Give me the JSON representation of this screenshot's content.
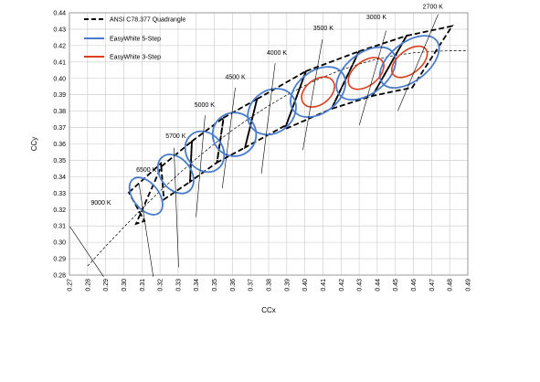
{
  "chart_data": {
    "type": "scatter",
    "xlabel": "CCx",
    "ylabel": "CCy",
    "xlim": [
      0.27,
      0.49
    ],
    "ylim": [
      0.28,
      0.44
    ],
    "x_ticks": [
      "0.27",
      "0.28",
      "0.29",
      "0.30",
      "0.31",
      "0.32",
      "0.33",
      "0.34",
      "0.35",
      "0.36",
      "0.37",
      "0.38",
      "0.39",
      "0.40",
      "0.41",
      "0.42",
      "0.43",
      "0.44",
      "0.45",
      "0.46",
      "0.47",
      "0.48",
      "0.49"
    ],
    "y_ticks": [
      "0.28",
      "0.29",
      "0.30",
      "0.31",
      "0.32",
      "0.33",
      "0.34",
      "0.35",
      "0.36",
      "0.37",
      "0.38",
      "0.39",
      "0.40",
      "0.41",
      "0.42",
      "0.43",
      "0.44"
    ],
    "grid": true,
    "legend_position": "top-left",
    "legend": [
      {
        "label": "ANSI C78.377 Quadrangle",
        "style": "dashed",
        "color": "#000000"
      },
      {
        "label": "EasyWhite 5-Step",
        "style": "solid",
        "color": "#4a7cc9"
      },
      {
        "label": "EasyWhite 3-Step",
        "style": "solid",
        "color": "#d9401f"
      }
    ],
    "colors": {
      "quadrangle": "#000000",
      "five_step": "#4a7cc9",
      "three_step": "#d9401f",
      "grid": "#c8c8c8",
      "locus": "#000000"
    },
    "cct_points": [
      {
        "label": "9000 K",
        "label_pos": [
          0.2874,
          0.3228
        ],
        "leader_end": [
          0.2703,
          0.3095
        ],
        "leader_to": [
          0.2889,
          0.279
        ]
      },
      {
        "label": "6500 K",
        "label_pos": [
          0.3125,
          0.3431
        ],
        "leader_end": [
          0.3084,
          0.3358
        ],
        "leader_to": [
          0.3163,
          0.279
        ]
      },
      {
        "label": "5700 K",
        "label_pos": [
          0.3287,
          0.3635
        ],
        "leader_end": [
          0.3277,
          0.3576
        ],
        "leader_to": [
          0.3303,
          0.2847
        ]
      },
      {
        "label": "5000 K",
        "label_pos": [
          0.3446,
          0.3825
        ],
        "leader_end": [
          0.3449,
          0.3774
        ],
        "leader_to": [
          0.3399,
          0.3155
        ]
      },
      {
        "label": "4500 K",
        "label_pos": [
          0.3616,
          0.3996
        ],
        "leader_end": [
          0.3616,
          0.3944
        ],
        "leader_to": [
          0.3544,
          0.333
        ]
      },
      {
        "label": "4000 K",
        "label_pos": [
          0.3845,
          0.4144
        ],
        "leader_end": [
          0.3836,
          0.4092
        ],
        "leader_to": [
          0.376,
          0.3419
        ]
      },
      {
        "label": "3500 K",
        "label_pos": [
          0.4102,
          0.4293
        ],
        "leader_end": [
          0.4097,
          0.4237
        ],
        "leader_to": [
          0.3989,
          0.3564
        ]
      },
      {
        "label": "3000 K",
        "label_pos": [
          0.4395,
          0.4361
        ],
        "leader_end": [
          0.4449,
          0.4291
        ],
        "leader_to": [
          0.4301,
          0.3715
        ]
      },
      {
        "label": "2700 K",
        "label_pos": [
          0.4707,
          0.4425
        ],
        "leader_end": [
          0.4736,
          0.439
        ],
        "leader_to": [
          0.4514,
          0.3802
        ]
      }
    ],
    "ansi_quadrangles": [
      {
        "cct": "6500 K",
        "points": [
          [
            0.3028,
            0.3304
          ],
          [
            0.3205,
            0.3481
          ],
          [
            0.3207,
            0.3462
          ],
          [
            0.3068,
            0.3113
          ],
          [
            0.3115,
            0.313
          ]
        ]
      },
      {
        "cct": "5700 K",
        "points": [
          [
            0.3207,
            0.3462
          ],
          [
            0.3376,
            0.3616
          ],
          [
            0.3366,
            0.3369
          ],
          [
            0.3221,
            0.3261
          ]
        ]
      },
      {
        "cct": "5000 K",
        "points": [
          [
            0.3376,
            0.3616
          ],
          [
            0.3551,
            0.376
          ],
          [
            0.3515,
            0.3487
          ],
          [
            0.3366,
            0.3369
          ]
        ]
      },
      {
        "cct": "4500 K",
        "points": [
          [
            0.3551,
            0.376
          ],
          [
            0.3736,
            0.3874
          ],
          [
            0.367,
            0.3578
          ],
          [
            0.3515,
            0.3487
          ]
        ]
      },
      {
        "cct": "4000 K",
        "points": [
          [
            0.3736,
            0.3874
          ],
          [
            0.4006,
            0.4044
          ],
          [
            0.3898,
            0.3716
          ],
          [
            0.367,
            0.3578
          ]
        ]
      },
      {
        "cct": "3500 K",
        "points": [
          [
            0.4006,
            0.4044
          ],
          [
            0.4299,
            0.4165
          ],
          [
            0.4147,
            0.3814
          ],
          [
            0.3889,
            0.369
          ]
        ]
      },
      {
        "cct": "3000 K",
        "points": [
          [
            0.4299,
            0.4165
          ],
          [
            0.4562,
            0.426
          ],
          [
            0.4373,
            0.3893
          ],
          [
            0.4147,
            0.3814
          ]
        ]
      },
      {
        "cct": "2700 K",
        "points": [
          [
            0.4562,
            0.426
          ],
          [
            0.4813,
            0.4319
          ],
          [
            0.4593,
            0.3944
          ],
          [
            0.4373,
            0.3893
          ]
        ]
      }
    ],
    "five_step_ellipses": [
      {
        "cct": "6500 K",
        "center": [
          0.3123,
          0.3282
        ],
        "rx": 0.0071,
        "ry": 0.013
      },
      {
        "cct": "5700 K",
        "center": [
          0.3287,
          0.3417
        ],
        "rx": 0.0084,
        "ry": 0.0132
      },
      {
        "cct": "5000 K",
        "center": [
          0.3447,
          0.3553
        ],
        "rx": 0.01,
        "ry": 0.0132
      },
      {
        "cct": "4500 K",
        "center": [
          0.3611,
          0.3658
        ],
        "rx": 0.012,
        "ry": 0.0133
      },
      {
        "cct": "4000 K",
        "center": [
          0.3818,
          0.3797
        ],
        "rx": 0.0142,
        "ry": 0.0129
      },
      {
        "cct": "3500 K",
        "center": [
          0.4073,
          0.3917
        ],
        "rx": 0.017,
        "ry": 0.0127
      },
      {
        "cct": "3000 K",
        "center": [
          0.4338,
          0.403
        ],
        "rx": 0.0188,
        "ry": 0.0123
      },
      {
        "cct": "2700 K",
        "center": [
          0.4578,
          0.4101
        ],
        "rx": 0.019,
        "ry": 0.0117
      }
    ],
    "three_step_ellipses": [
      {
        "cct": "3500 K",
        "center": [
          0.4073,
          0.3917
        ],
        "rx": 0.0102,
        "ry": 0.0076
      },
      {
        "cct": "3000 K",
        "center": [
          0.4338,
          0.403
        ],
        "rx": 0.0113,
        "ry": 0.0074
      },
      {
        "cct": "2700 K",
        "center": [
          0.4578,
          0.4101
        ],
        "rx": 0.0114,
        "ry": 0.007
      }
    ],
    "planckian_locus": {
      "x": [
        0.28,
        0.29,
        0.3,
        0.31,
        0.32,
        0.33,
        0.34,
        0.35,
        0.36,
        0.37,
        0.38,
        0.39,
        0.4,
        0.41,
        0.42,
        0.43,
        0.44,
        0.45,
        0.46,
        0.47,
        0.48,
        0.49
      ],
      "y": [
        0.2855,
        0.2975,
        0.3092,
        0.3205,
        0.3312,
        0.3414,
        0.351,
        0.36,
        0.3684,
        0.3761,
        0.3833,
        0.3898,
        0.3956,
        0.4007,
        0.4051,
        0.4088,
        0.4118,
        0.4141,
        0.4156,
        0.4165,
        0.4168,
        0.4168
      ]
    }
  }
}
